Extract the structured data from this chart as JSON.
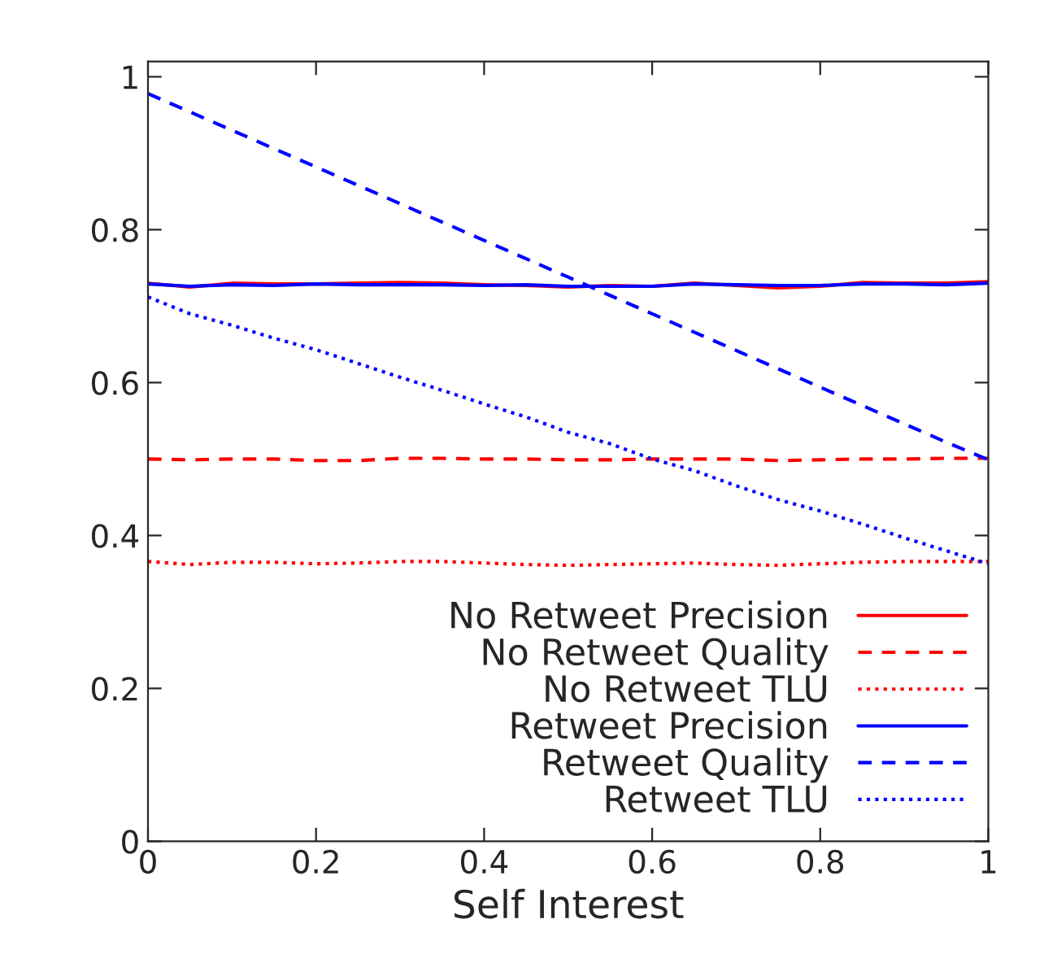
{
  "chart_data": {
    "type": "line",
    "xlabel": "Self Interest",
    "x": [
      0,
      0.05,
      0.1,
      0.15,
      0.2,
      0.25,
      0.3,
      0.35,
      0.4,
      0.45,
      0.5,
      0.55,
      0.6,
      0.65,
      0.7,
      0.75,
      0.8,
      0.85,
      0.9,
      0.95,
      1
    ],
    "series": [
      {
        "name": "No Retweet Precision",
        "color": "#ff0000",
        "line_style": "solid",
        "values": [
          0.73,
          0.725,
          0.73,
          0.729,
          0.729,
          0.73,
          0.731,
          0.73,
          0.728,
          0.727,
          0.725,
          0.727,
          0.726,
          0.73,
          0.727,
          0.724,
          0.726,
          0.731,
          0.73,
          0.73,
          0.732
        ]
      },
      {
        "name": "No Retweet Quality",
        "color": "#ff0000",
        "line_style": "dashed",
        "values": [
          0.5,
          0.499,
          0.5,
          0.5,
          0.498,
          0.498,
          0.501,
          0.501,
          0.5,
          0.5,
          0.499,
          0.499,
          0.5,
          0.5,
          0.5,
          0.498,
          0.499,
          0.5,
          0.5,
          0.501,
          0.501
        ]
      },
      {
        "name": "No Retweet TLU",
        "color": "#ff0000",
        "line_style": "dotted",
        "values": [
          0.366,
          0.362,
          0.365,
          0.365,
          0.363,
          0.364,
          0.366,
          0.366,
          0.364,
          0.362,
          0.361,
          0.362,
          0.363,
          0.364,
          0.362,
          0.361,
          0.363,
          0.365,
          0.366,
          0.366,
          0.366
        ]
      },
      {
        "name": "Retweet Precision",
        "color": "#0000ff",
        "line_style": "solid",
        "values": [
          0.729,
          0.726,
          0.728,
          0.727,
          0.729,
          0.728,
          0.728,
          0.728,
          0.727,
          0.728,
          0.726,
          0.726,
          0.726,
          0.729,
          0.728,
          0.727,
          0.727,
          0.729,
          0.729,
          0.728,
          0.73
        ]
      },
      {
        "name": "Retweet Quality",
        "color": "#0000ff",
        "line_style": "dashed",
        "values": [
          0.978,
          0.954,
          0.93,
          0.906,
          0.882,
          0.858,
          0.834,
          0.81,
          0.786,
          0.762,
          0.738,
          0.714,
          0.69,
          0.666,
          0.642,
          0.618,
          0.594,
          0.57,
          0.546,
          0.522,
          0.499
        ]
      },
      {
        "name": "Retweet TLU",
        "color": "#0000ff",
        "line_style": "dotted",
        "values": [
          0.712,
          0.69,
          0.675,
          0.658,
          0.643,
          0.625,
          0.607,
          0.59,
          0.572,
          0.555,
          0.535,
          0.52,
          0.5,
          0.485,
          0.465,
          0.447,
          0.432,
          0.415,
          0.397,
          0.38,
          0.363
        ]
      }
    ],
    "xlim": [
      0,
      1
    ],
    "ylim": [
      0,
      1.02
    ],
    "xticks": [
      0,
      0.2,
      0.4,
      0.6,
      0.8,
      1
    ],
    "yticks": [
      0,
      0.2,
      0.4,
      0.6,
      0.8,
      1
    ],
    "legend": "lower right"
  }
}
